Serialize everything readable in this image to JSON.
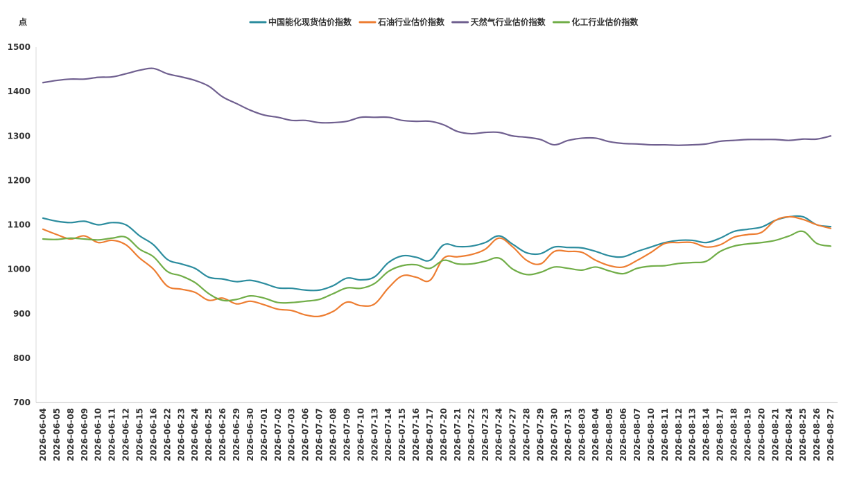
{
  "chart_data": {
    "type": "line",
    "title": "",
    "xlabel": "",
    "ylabel": "点",
    "ylim": [
      700,
      1500
    ],
    "yticks": [
      700,
      800,
      900,
      1000,
      1100,
      1200,
      1300,
      1400,
      1500
    ],
    "grid": false,
    "legend_position": "top",
    "x": [
      "2026-06-04",
      "2026-06-05",
      "2026-06-08",
      "2026-06-09",
      "2026-06-10",
      "2026-06-11",
      "2026-06-12",
      "2026-06-15",
      "2026-06-16",
      "2026-06-22",
      "2026-06-23",
      "2026-06-24",
      "2026-06-25",
      "2026-06-26",
      "2026-06-29",
      "2026-06-30",
      "2026-07-01",
      "2026-07-02",
      "2026-07-03",
      "2026-07-06",
      "2026-07-07",
      "2026-07-08",
      "2026-07-09",
      "2026-07-10",
      "2026-07-13",
      "2026-07-14",
      "2026-07-15",
      "2026-07-16",
      "2026-07-17",
      "2026-07-20",
      "2026-07-21",
      "2026-07-22",
      "2026-07-23",
      "2026-07-24",
      "2026-07-27",
      "2026-07-28",
      "2026-07-29",
      "2026-07-30",
      "2026-07-31",
      "2026-08-03",
      "2026-08-04",
      "2026-08-05",
      "2026-08-06",
      "2026-08-07",
      "2026-08-10",
      "2026-08-11",
      "2026-08-12",
      "2026-08-13",
      "2026-08-14",
      "2026-08-17",
      "2026-08-18",
      "2026-08-19",
      "2026-08-20",
      "2026-08-21",
      "2026-08-24",
      "2026-08-25",
      "2026-08-26",
      "2026-08-27"
    ],
    "series": [
      {
        "name": "中国能化现货估价指数",
        "color": "#2b8c9e",
        "values": [
          1115,
          1108,
          1105,
          1108,
          1100,
          1105,
          1100,
          1075,
          1055,
          1022,
          1012,
          1002,
          982,
          978,
          972,
          975,
          968,
          958,
          957,
          953,
          953,
          963,
          980,
          976,
          983,
          1015,
          1030,
          1027,
          1020,
          1055,
          1051,
          1052,
          1060,
          1075,
          1056,
          1037,
          1035,
          1050,
          1049,
          1048,
          1040,
          1030,
          1028,
          1040,
          1050,
          1060,
          1065,
          1065,
          1060,
          1070,
          1085,
          1090,
          1095,
          1110,
          1118,
          1118,
          1100,
          1096
        ]
      },
      {
        "name": "石油行业估价指数",
        "color": "#ed7d31",
        "values": [
          1090,
          1078,
          1068,
          1075,
          1060,
          1065,
          1055,
          1025,
          1000,
          962,
          955,
          948,
          930,
          935,
          922,
          928,
          920,
          910,
          907,
          897,
          894,
          905,
          926,
          918,
          922,
          958,
          985,
          982,
          975,
          1025,
          1028,
          1033,
          1045,
          1070,
          1050,
          1020,
          1012,
          1040,
          1040,
          1038,
          1020,
          1008,
          1005,
          1020,
          1038,
          1058,
          1060,
          1060,
          1050,
          1055,
          1072,
          1078,
          1083,
          1110,
          1118,
          1112,
          1100,
          1092
        ]
      },
      {
        "name": "天然气行业估价指数",
        "color": "#6f5f8f",
        "values": [
          1420,
          1425,
          1428,
          1428,
          1432,
          1433,
          1440,
          1448,
          1452,
          1440,
          1433,
          1425,
          1412,
          1388,
          1373,
          1358,
          1347,
          1342,
          1335,
          1335,
          1330,
          1330,
          1333,
          1342,
          1342,
          1342,
          1335,
          1333,
          1333,
          1325,
          1310,
          1305,
          1308,
          1308,
          1300,
          1297,
          1292,
          1280,
          1290,
          1295,
          1295,
          1287,
          1283,
          1282,
          1280,
          1280,
          1279,
          1280,
          1282,
          1288,
          1290,
          1292,
          1292,
          1292,
          1290,
          1293,
          1293,
          1300
        ]
      },
      {
        "name": "化工行业估价指数",
        "color": "#70ad47",
        "values": [
          1068,
          1067,
          1070,
          1068,
          1066,
          1070,
          1072,
          1045,
          1028,
          995,
          985,
          970,
          945,
          930,
          932,
          940,
          935,
          925,
          925,
          928,
          932,
          945,
          958,
          957,
          968,
          995,
          1008,
          1010,
          1002,
          1020,
          1012,
          1012,
          1018,
          1025,
          1000,
          988,
          993,
          1005,
          1002,
          998,
          1005,
          996,
          990,
          1002,
          1007,
          1008,
          1013,
          1015,
          1018,
          1040,
          1052,
          1057,
          1060,
          1065,
          1075,
          1085,
          1058,
          1052
        ]
      }
    ]
  }
}
